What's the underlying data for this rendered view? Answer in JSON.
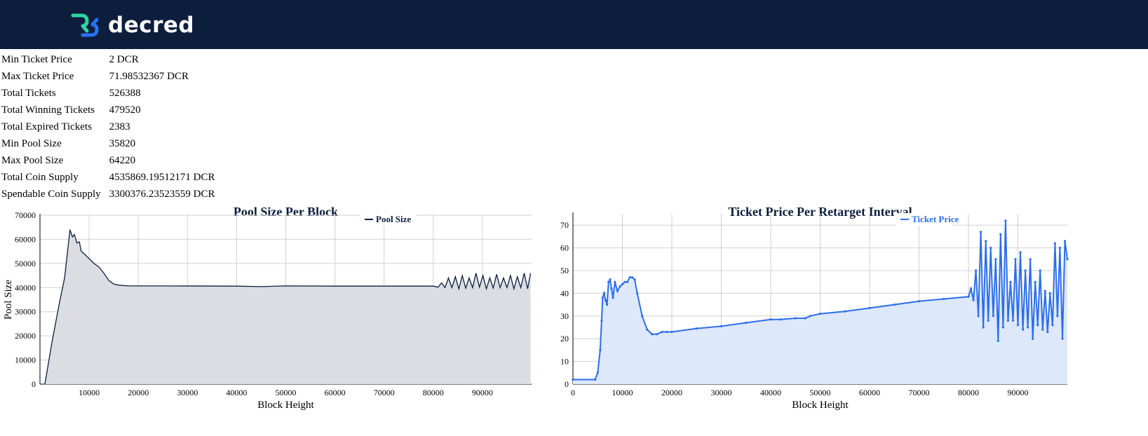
{
  "brand": {
    "name": "decred"
  },
  "stats": [
    {
      "label": "Min Ticket Price",
      "value": "2 DCR"
    },
    {
      "label": "Max Ticket Price",
      "value": "71.98532367 DCR"
    },
    {
      "label": "Total Tickets",
      "value": "526388"
    },
    {
      "label": "Total Winning Tickets",
      "value": "479520"
    },
    {
      "label": "Total Expired Tickets",
      "value": "2383"
    },
    {
      "label": "Min Pool Size",
      "value": "35820"
    },
    {
      "label": "Max Pool Size",
      "value": "64220"
    },
    {
      "label": "Total Coin Supply",
      "value": "4535869.19512171 DCR"
    },
    {
      "label": "Spendable Coin Supply",
      "value": "3300376.23523559 DCR"
    }
  ],
  "chart_data": [
    {
      "type": "area",
      "title": "Pool Size Per Block",
      "xlabel": "Block Height",
      "ylabel": "Pool Size",
      "xlim": [
        0,
        100000
      ],
      "ylim": [
        0,
        70000
      ],
      "x_ticks": [
        "10000",
        "20000",
        "30000",
        "40000",
        "50000",
        "60000",
        "70000",
        "80000",
        "90000"
      ],
      "y_ticks": [
        "0",
        "10000",
        "20000",
        "30000",
        "40000",
        "50000",
        "60000",
        "70000"
      ],
      "grid": true,
      "legend_position": "top-right",
      "series": [
        {
          "name": "Pool Size",
          "color": "#0d1e3d",
          "fill": "#dcdde2",
          "x": [
            1000,
            2500,
            4000,
            5000,
            6100,
            6600,
            7000,
            7500,
            8000,
            8400,
            9000,
            10000,
            11000,
            12000,
            13000,
            14000,
            15000,
            16000,
            18000,
            25000,
            40000,
            45000,
            50000,
            60000,
            70000,
            80000,
            81000,
            81700,
            82400,
            83100,
            83800,
            84500,
            85200,
            85900,
            86600,
            87300,
            88000,
            88700,
            89400,
            90100,
            90800,
            91500,
            92200,
            92900,
            93600,
            94300,
            95000,
            95700,
            96400,
            97100,
            97800,
            98500,
            99200,
            99800
          ],
          "y": [
            0,
            18000,
            34000,
            44000,
            64000,
            61000,
            62000,
            58500,
            59000,
            55000,
            54000,
            52000,
            50000,
            48500,
            46000,
            43000,
            41500,
            41000,
            40700,
            40700,
            40600,
            40400,
            40700,
            40600,
            40600,
            40600,
            40200,
            42000,
            40000,
            44000,
            40000,
            44500,
            39500,
            45000,
            39800,
            44000,
            40000,
            46000,
            40200,
            45000,
            39500,
            44000,
            39800,
            45500,
            40000,
            44000,
            40000,
            45000,
            39500,
            44500,
            40000,
            46000,
            39500,
            46000
          ]
        }
      ]
    },
    {
      "type": "line",
      "title": "Ticket Price Per Retarget Interval",
      "xlabel": "Block Height",
      "ylabel": "Ticket Price",
      "xlim": [
        0,
        100000
      ],
      "ylim": [
        0,
        75
      ],
      "x_ticks": [
        "0",
        "10000",
        "20000",
        "30000",
        "40000",
        "50000",
        "60000",
        "70000",
        "80000",
        "90000"
      ],
      "y_ticks": [
        "0",
        "10",
        "20",
        "30",
        "40",
        "50",
        "60",
        "70"
      ],
      "grid": true,
      "legend_position": "top-right",
      "series": [
        {
          "name": "Ticket Price",
          "color": "#2d6ee8",
          "fill": "#dde8fb",
          "x": [
            0,
            4500,
            5000,
            5500,
            5800,
            6000,
            6300,
            6600,
            6900,
            7200,
            7500,
            7800,
            8100,
            8500,
            9000,
            9500,
            10000,
            10500,
            11000,
            11500,
            12000,
            12500,
            13000,
            14000,
            15000,
            16000,
            17000,
            18000,
            19000,
            20000,
            25000,
            30000,
            35000,
            40000,
            42000,
            45000,
            47000,
            48000,
            50000,
            55000,
            60000,
            65000,
            70000,
            75000,
            80000,
            80500,
            81000,
            81500,
            82000,
            82500,
            83000,
            83500,
            84000,
            84500,
            85000,
            85500,
            86000,
            86500,
            87000,
            87500,
            88000,
            88500,
            89000,
            89500,
            90000,
            90500,
            91000,
            91500,
            92000,
            92500,
            93000,
            93500,
            94000,
            94500,
            95000,
            95500,
            96000,
            96500,
            97000,
            97500,
            98000,
            98500,
            99000,
            99500,
            100000
          ],
          "y": [
            2,
            2,
            5,
            15,
            28,
            38,
            40,
            37,
            35,
            45,
            46,
            42,
            38,
            45,
            41,
            43,
            44,
            45,
            45,
            47,
            47,
            46,
            40,
            30,
            24,
            22,
            22,
            23,
            23,
            23,
            24.5,
            25.5,
            27,
            28.5,
            28.5,
            29,
            29,
            30,
            31,
            32,
            33.5,
            35,
            36.5,
            37.5,
            38.5,
            42,
            37,
            50,
            30,
            67,
            25,
            63,
            28,
            60,
            30,
            55,
            19,
            66,
            25,
            72,
            28,
            45,
            28,
            55,
            26,
            58,
            24,
            50,
            25,
            55,
            20,
            45,
            26,
            50,
            24,
            41,
            23,
            40,
            26,
            62,
            30,
            60,
            20,
            63,
            55
          ]
        }
      ]
    }
  ]
}
